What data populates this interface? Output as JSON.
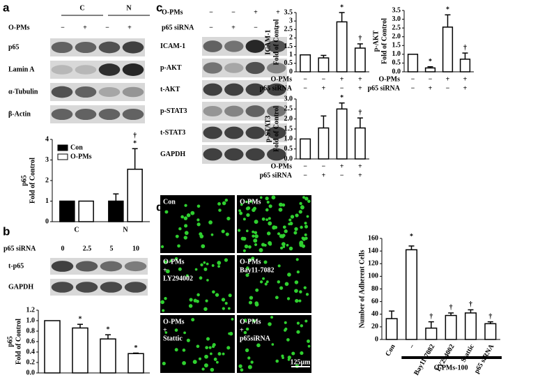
{
  "panels": {
    "a": {
      "label": "a",
      "groups": [
        "C",
        "N"
      ],
      "treatment": {
        "name": "O-PMs",
        "signs": [
          "−",
          "+",
          "−",
          "+"
        ]
      },
      "rows": [
        "p65",
        "Lamin A",
        "α-Tubulin",
        "β-Actin"
      ]
    },
    "b": {
      "label": "b",
      "treatment": {
        "name": "p65 siRNA",
        "signs": [
          "0",
          "2.5",
          "5",
          "10"
        ]
      },
      "rows": [
        "t-p65",
        "GAPDH"
      ]
    },
    "c": {
      "label": "c",
      "treatments": [
        {
          "name": "O-PMs",
          "signs": [
            "−",
            "−",
            "+",
            "+"
          ]
        },
        {
          "name": "p65 siRNA",
          "signs": [
            "−",
            "+",
            "−",
            "+"
          ]
        }
      ],
      "rows": [
        "ICAM-1",
        "p-AKT",
        "t-AKT",
        "p-STAT3",
        "t-STAT3",
        "GAPDH"
      ]
    },
    "d": {
      "label": "d",
      "images": [
        [
          "Con"
        ],
        [
          "O-PMs"
        ],
        [
          "O-PMs",
          "+",
          "LY294002"
        ],
        [
          "O-PMs",
          "Bay11-7082"
        ],
        [
          "O-PMs",
          "+",
          "Stattic"
        ],
        [
          "O-PMs",
          "+",
          "p65siRNA"
        ]
      ],
      "scale_bar": "125µm"
    }
  },
  "chart_data": [
    {
      "type": "bar",
      "ylabel": [
        "p65",
        "Fold of Control"
      ],
      "categories": [
        "C",
        "N"
      ],
      "ylim": [
        0,
        4
      ],
      "yticks": [
        0,
        1,
        2,
        3,
        4
      ],
      "series": [
        {
          "name": "Con",
          "color": "#000000",
          "values": [
            1,
            1
          ],
          "errors": [
            0,
            0.35
          ],
          "marks": [
            null,
            null
          ]
        },
        {
          "name": "O-PMs",
          "color": "#ffffff",
          "values": [
            1,
            2.55
          ],
          "errors": [
            0,
            1.0
          ],
          "marks": [
            null,
            [
              "*",
              "†"
            ]
          ]
        }
      ]
    },
    {
      "type": "bar",
      "ylabel": [
        "p65",
        "Fold of Control"
      ],
      "color": "#ffffff",
      "values": [
        1.0,
        0.86,
        0.65,
        0.37
      ],
      "errors": [
        0,
        0.07,
        0.08,
        0.01
      ],
      "marks": [
        null,
        [
          "*"
        ],
        [
          "*"
        ],
        [
          "*"
        ]
      ],
      "ylim": [
        0,
        1.2
      ],
      "yticks": [
        {
          "value": 0,
          "label": "0.0"
        },
        {
          "value": 0.2,
          "label": "0.2"
        },
        {
          "value": 0.4,
          "label": "0.4"
        },
        {
          "value": 0.6,
          "label": "0.6"
        },
        {
          "value": 0.8,
          "label": "0.8"
        },
        {
          "value": 1,
          "label": "1.0"
        },
        {
          "value": 1.2,
          "label": "1.2"
        }
      ]
    },
    {
      "type": "bar",
      "ylabel": [
        "ICAM-1",
        "Fold of Control"
      ],
      "color": "#ffffff",
      "values": [
        1.0,
        0.82,
        2.95,
        1.4
      ],
      "errors": [
        0,
        0.15,
        0.55,
        0.25
      ],
      "marks": [
        null,
        null,
        [
          "*"
        ],
        [
          "†"
        ]
      ],
      "ylim": [
        0,
        3.5
      ],
      "yticks": [
        0,
        0.5,
        1,
        1.5,
        2,
        2.5,
        3,
        3.5
      ],
      "conditions": [
        {
          "name": "O-PMs",
          "signs": [
            "−",
            "−",
            "+",
            "+"
          ]
        },
        {
          "name": "p65 siRNA",
          "signs": [
            "−",
            "+",
            "−",
            "+"
          ]
        }
      ]
    },
    {
      "type": "bar",
      "ylabel": [
        "p-AKT",
        "Fold of Control"
      ],
      "color": "#ffffff",
      "values": [
        1.0,
        0.22,
        2.55,
        0.72
      ],
      "errors": [
        0,
        0.07,
        0.7,
        0.35
      ],
      "marks": [
        null,
        [
          "*"
        ],
        [
          "*"
        ],
        [
          "†"
        ]
      ],
      "ylim": [
        0,
        3.5
      ],
      "yticks": [
        {
          "value": 0,
          "label": "0.0"
        },
        0.5,
        {
          "value": 1,
          "label": "1.0"
        },
        1.5,
        {
          "value": 2,
          "label": "2.0"
        },
        2.5,
        {
          "value": 3,
          "label": "3.0"
        },
        3.5
      ],
      "conditions": [
        {
          "name": "O-PMs",
          "signs": [
            "−",
            "−",
            "+",
            "+"
          ]
        },
        {
          "name": "p65 siRNA",
          "signs": [
            "−",
            "+",
            "−",
            "+"
          ]
        }
      ]
    },
    {
      "type": "bar",
      "ylabel": [
        "p-STAT3",
        "Fold of Control"
      ],
      "color": "#ffffff",
      "values": [
        1.0,
        1.55,
        2.5,
        1.55
      ],
      "errors": [
        0,
        0.6,
        0.3,
        0.5
      ],
      "marks": [
        null,
        null,
        [
          "*"
        ],
        [
          "†"
        ]
      ],
      "ylim": [
        0,
        3.0
      ],
      "yticks": [
        {
          "value": 0,
          "label": "0.0"
        },
        0.5,
        {
          "value": 1,
          "label": "1.0"
        },
        1.5,
        {
          "value": 2,
          "label": "2.0"
        },
        2.5,
        {
          "value": 3,
          "label": "3.0"
        }
      ],
      "conditions": [
        {
          "name": "O-PMs",
          "signs": [
            "−",
            "−",
            "+",
            "+"
          ]
        },
        {
          "name": "p65 siRNA",
          "signs": [
            "−",
            "+",
            "−",
            "+"
          ]
        }
      ]
    },
    {
      "type": "bar",
      "ylabel": [
        "Number of Adherent Cells"
      ],
      "color": "#ffffff",
      "categories": [
        "Con",
        "−",
        "Bay11-7082",
        "LY294002",
        "Stattic",
        "p65 siRNA"
      ],
      "values": [
        33,
        142,
        18,
        38,
        42,
        25
      ],
      "errors": [
        12,
        6,
        10,
        4,
        5,
        3
      ],
      "marks": [
        null,
        [
          "*"
        ],
        [
          "†"
        ],
        [
          "†"
        ],
        [
          "†"
        ],
        [
          "†"
        ]
      ],
      "ylim": [
        0,
        160
      ],
      "yticks": [
        0,
        20,
        40,
        60,
        80,
        100,
        120,
        140,
        160
      ],
      "group_label": "O-PMs-100"
    }
  ]
}
